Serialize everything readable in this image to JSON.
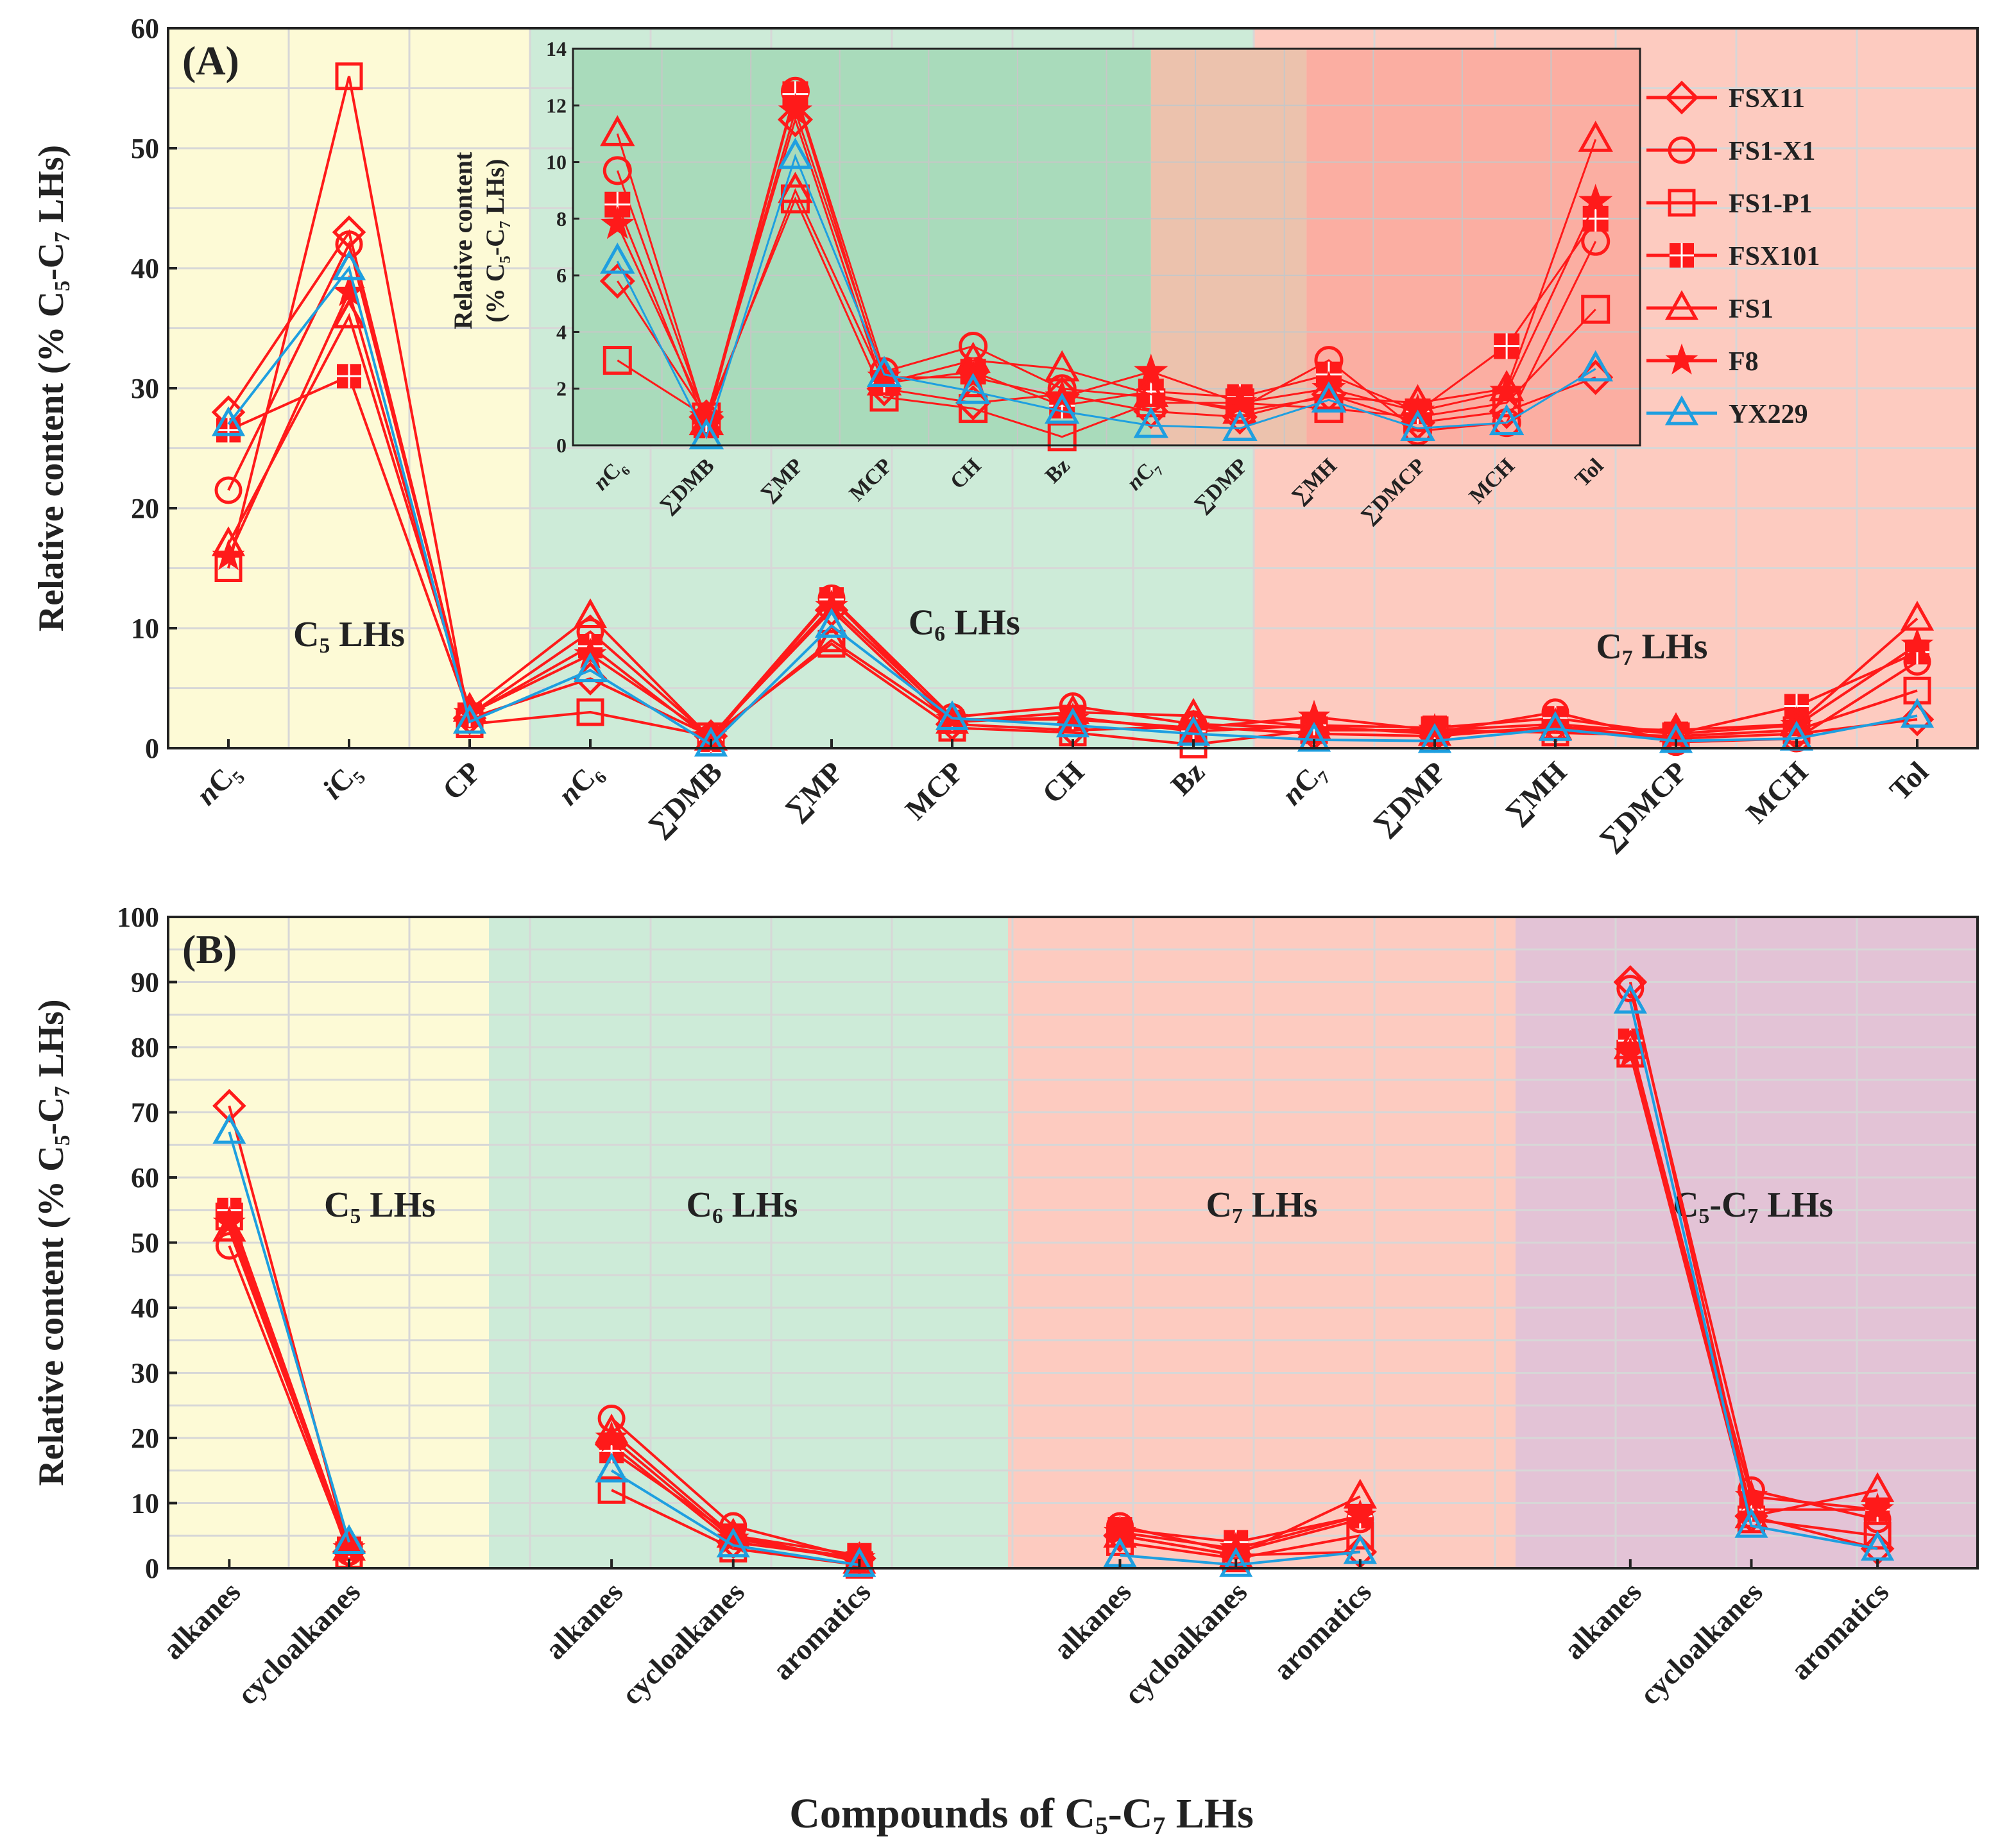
{
  "chart_data": [
    {
      "panel": "(A)",
      "type": "line",
      "ylabel": "Relative content (% C5-C7 LHs)",
      "ylim": [
        0,
        60
      ],
      "yticks": [
        0,
        10,
        20,
        30,
        40,
        50,
        60
      ],
      "categories": [
        "nC5",
        "iC5",
        "CP",
        "nC6",
        "∑DMB",
        "∑MP",
        "MCP",
        "CH",
        "Bz",
        "nC7",
        "∑DMP",
        "∑MH",
        "∑DMCP",
        "MCH",
        "Tol"
      ],
      "regions": [
        {
          "label": "C5 LHs",
          "start": 0,
          "end": 2,
          "color": "#fdfad6"
        },
        {
          "label": "C6 LHs",
          "start": 3,
          "end": 8,
          "color": "#cdebd8"
        },
        {
          "label": "C7 LHs",
          "start": 9,
          "end": 14,
          "color": "#fdcbc0"
        }
      ],
      "series": [
        {
          "name": "FSX11",
          "marker": "diamond",
          "color": "#ff1a1a",
          "values": [
            28,
            43,
            2.5,
            5.8,
            1.0,
            11.5,
            2.0,
            1.5,
            1.8,
            1.2,
            1.0,
            1.8,
            0.8,
            1.2,
            2.4
          ]
        },
        {
          "name": "FS1-X1",
          "marker": "circle",
          "color": "#ff1a1a",
          "values": [
            21.5,
            42,
            2.8,
            9.7,
            0.9,
            12.5,
            2.6,
            3.5,
            2.0,
            1.7,
            1.3,
            3.0,
            0.5,
            0.8,
            7.2
          ]
        },
        {
          "name": "FS1-P1",
          "marker": "square",
          "color": "#ff1a1a",
          "values": [
            15,
            56,
            2.0,
            3.0,
            1.0,
            8.7,
            1.7,
            1.3,
            0.3,
            1.5,
            1.5,
            1.3,
            1.0,
            1.5,
            4.8
          ]
        },
        {
          "name": "FSX101",
          "marker": "square-filled",
          "color": "#ff1a1a",
          "values": [
            26.5,
            31,
            2.8,
            8.5,
            0.7,
            12.4,
            2.2,
            2.6,
            1.4,
            1.9,
            1.7,
            2.5,
            1.2,
            3.5,
            8.0
          ]
        },
        {
          "name": "FS1",
          "marker": "triangle",
          "color": "#ff1a1a",
          "values": [
            17,
            36,
            3.2,
            11.0,
            0.8,
            9.0,
            2.2,
            3.0,
            2.7,
            1.8,
            1.2,
            1.7,
            1.5,
            2.0,
            10.8
          ]
        },
        {
          "name": "F8",
          "marker": "star",
          "color": "#ff1a1a",
          "values": [
            16,
            38,
            2.9,
            7.8,
            1.0,
            11.8,
            2.4,
            2.4,
            1.7,
            2.6,
            1.5,
            2.0,
            1.2,
            1.9,
            8.6
          ]
        },
        {
          "name": "YX229",
          "marker": "triangle",
          "color": "#1e9fe0",
          "values": [
            27,
            40,
            2.2,
            6.5,
            0.3,
            10.2,
            2.5,
            1.9,
            1.2,
            0.7,
            0.6,
            1.6,
            0.6,
            0.8,
            2.7
          ]
        }
      ],
      "inset": {
        "ylabel": "Relative content (% C5-C7 LHs)",
        "ylim": [
          0,
          14
        ],
        "yticks": [
          0,
          2,
          4,
          6,
          8,
          10,
          12,
          14
        ],
        "categories": [
          "nC6",
          "∑DMB",
          "∑MP",
          "MCP",
          "CH",
          "Bz",
          "nC7",
          "∑DMP",
          "∑MH",
          "∑DMCP",
          "MCH",
          "Tol"
        ]
      }
    },
    {
      "panel": "(B)",
      "type": "line",
      "xlabel": "Compounds of C5-C7 LHs",
      "ylabel": "Relative content (% C5-C7 LHs)",
      "ylim": [
        0,
        100
      ],
      "yticks": [
        0,
        10,
        20,
        30,
        40,
        50,
        60,
        70,
        80,
        90,
        100
      ],
      "categories": [
        "alkanes",
        "cycloalkanes",
        "alkanes",
        "cycloalkanes",
        "aromatics",
        "alkanes",
        "cycloalkanes",
        "aromatics",
        "alkanes",
        "cycloalkanes",
        "aromatics"
      ],
      "groups": [
        {
          "label": "C5 LHs",
          "indices": [
            0,
            1
          ],
          "color": "#fdfad6"
        },
        {
          "label": "C6 LHs",
          "indices": [
            2,
            3,
            4
          ],
          "color": "#cdebd8"
        },
        {
          "label": "C7 LHs",
          "indices": [
            5,
            6,
            7
          ],
          "color": "#fdcbc0"
        },
        {
          "label": "C5-C7 LHs",
          "indices": [
            8,
            9,
            10
          ],
          "color": "#e3c3d6"
        }
      ],
      "series": [
        {
          "name": "FSX11",
          "values": [
            71,
            2.5,
            19,
            4,
            1.5,
            5,
            2,
            2.5,
            90,
            8,
            3
          ]
        },
        {
          "name": "FS1-X1",
          "values": [
            49.5,
            2.5,
            23,
            6.5,
            1.5,
            6.5,
            2.5,
            7.5,
            89,
            12,
            7.5
          ]
        },
        {
          "name": "FS1-P1",
          "values": [
            54,
            2,
            12,
            3,
            0.5,
            4,
            1.5,
            5,
            79,
            7.5,
            5
          ]
        },
        {
          "name": "FSX101",
          "values": [
            55,
            3,
            18,
            5,
            2,
            6,
            4,
            8,
            81,
            9,
            9
          ]
        },
        {
          "name": "FS1",
          "values": [
            52,
            3,
            21,
            5,
            1,
            5,
            2,
            11,
            80,
            8,
            12
          ]
        },
        {
          "name": "F8",
          "values": [
            53,
            3,
            20,
            4.5,
            1.5,
            5.5,
            3,
            8,
            79,
            11,
            9
          ]
        },
        {
          "name": "YX229",
          "values": [
            67,
            4,
            15,
            3.5,
            0.5,
            2,
            0.5,
            2.5,
            87,
            6.5,
            3
          ]
        }
      ]
    }
  ],
  "legend": [
    {
      "name": "FSX11",
      "marker": "diamond",
      "color": "#ff1a1a"
    },
    {
      "name": "FS1-X1",
      "marker": "circle",
      "color": "#ff1a1a"
    },
    {
      "name": "FS1-P1",
      "marker": "square",
      "color": "#ff1a1a"
    },
    {
      "name": "FSX101",
      "marker": "square-filled",
      "color": "#ff1a1a"
    },
    {
      "name": "FS1",
      "marker": "triangle",
      "color": "#ff1a1a"
    },
    {
      "name": "F8",
      "marker": "star",
      "color": "#ff1a1a"
    },
    {
      "name": "YX229",
      "marker": "triangle",
      "color": "#1e9fe0"
    }
  ]
}
